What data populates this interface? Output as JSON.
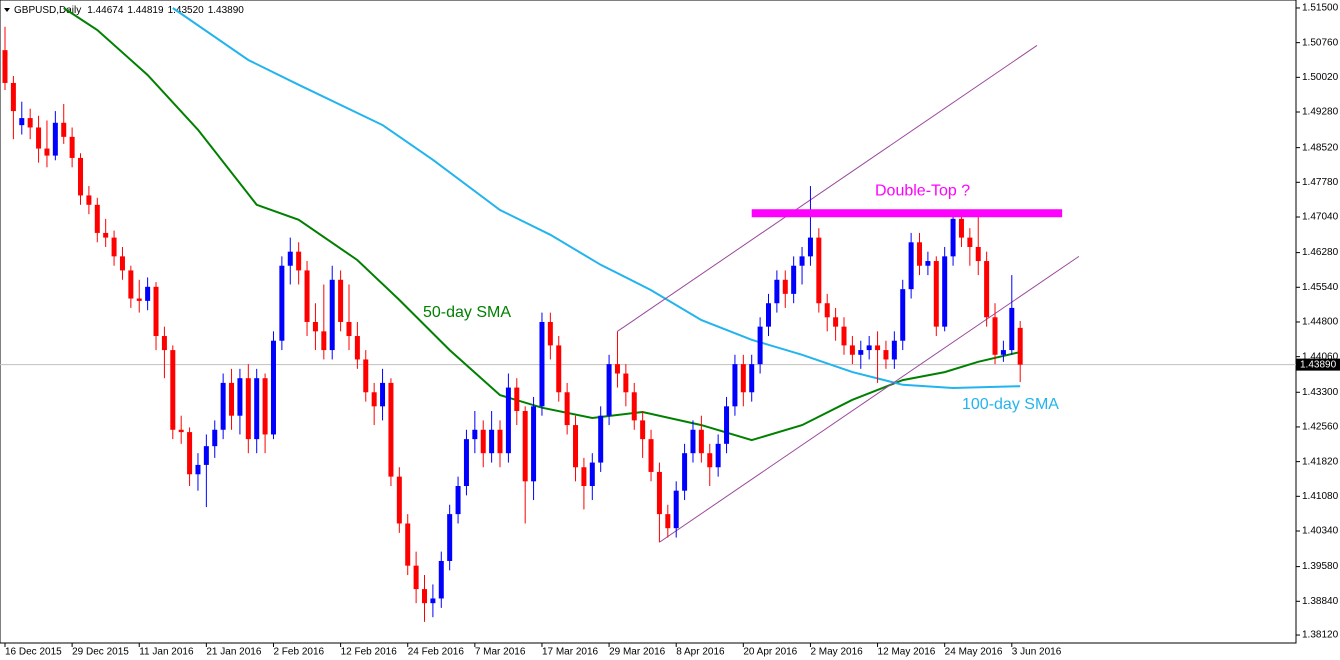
{
  "chart_data": {
    "type": "candlestick",
    "title": "GBPUSD,Daily",
    "last_quote_labels": [
      "1.44674",
      "1.44819",
      "1.43520",
      "1.43890"
    ],
    "up_color": "#0000ff",
    "down_color": "#ff0000",
    "categories": [
      "16 Dec 2015",
      null,
      null,
      null,
      null,
      null,
      null,
      null,
      "29 Dec 2015",
      null,
      null,
      null,
      null,
      null,
      null,
      null,
      "11 Jan 2016",
      null,
      null,
      null,
      null,
      null,
      null,
      null,
      "21 Jan 2016",
      null,
      null,
      null,
      null,
      null,
      null,
      null,
      "2 Feb 2016",
      null,
      null,
      null,
      null,
      null,
      null,
      null,
      "12 Feb 2016",
      null,
      null,
      null,
      null,
      null,
      null,
      null,
      "24 Feb 2016",
      null,
      null,
      null,
      null,
      null,
      null,
      null,
      "7 Mar 2016",
      null,
      null,
      null,
      null,
      null,
      null,
      null,
      "17 Mar 2016",
      null,
      null,
      null,
      null,
      null,
      null,
      null,
      "29 Mar 2016",
      null,
      null,
      null,
      null,
      null,
      null,
      null,
      "8 Apr 2016",
      null,
      null,
      null,
      null,
      null,
      null,
      null,
      "20 Apr 2016",
      null,
      null,
      null,
      null,
      null,
      null,
      null,
      "2 May 2016",
      null,
      null,
      null,
      null,
      null,
      null,
      null,
      "12 May 2016",
      null,
      null,
      null,
      null,
      null,
      null,
      null,
      "24 May 2016",
      null,
      null,
      null,
      null,
      null,
      null,
      null,
      "3 Jun 2016",
      null
    ],
    "candles": [
      [
        1.506,
        1.511,
        1.4975,
        1.499
      ],
      [
        1.499,
        1.5005,
        1.487,
        1.493
      ],
      [
        1.49,
        1.495,
        1.488,
        1.4915
      ],
      [
        1.4915,
        1.4935,
        1.487,
        1.4895
      ],
      [
        1.4895,
        1.492,
        1.482,
        1.485
      ],
      [
        1.485,
        1.491,
        1.481,
        1.4835
      ],
      [
        1.4835,
        1.493,
        1.4825,
        1.4905
      ],
      [
        1.4905,
        1.4945,
        1.486,
        1.4875
      ],
      [
        1.4875,
        1.4895,
        1.481,
        1.483
      ],
      [
        1.483,
        1.484,
        1.473,
        1.475
      ],
      [
        1.475,
        1.477,
        1.471,
        1.473
      ],
      [
        1.473,
        1.4745,
        1.465,
        1.467
      ],
      [
        1.467,
        1.47,
        1.464,
        1.466
      ],
      [
        1.466,
        1.4675,
        1.46,
        1.462
      ],
      [
        1.462,
        1.464,
        1.457,
        1.459
      ],
      [
        1.459,
        1.46,
        1.451,
        1.453
      ],
      [
        1.453,
        1.457,
        1.45,
        1.4525
      ],
      [
        1.4525,
        1.4575,
        1.4505,
        1.4555
      ],
      [
        1.4555,
        1.4565,
        1.442,
        1.445
      ],
      [
        1.445,
        1.447,
        1.436,
        1.442
      ],
      [
        1.442,
        1.443,
        1.423,
        1.425
      ],
      [
        1.425,
        1.428,
        1.422,
        1.4245
      ],
      [
        1.4245,
        1.4255,
        1.413,
        1.4155
      ],
      [
        1.4155,
        1.42,
        1.412,
        1.4175
      ],
      [
        1.4175,
        1.424,
        1.4085,
        1.4215
      ],
      [
        1.4215,
        1.427,
        1.419,
        1.425
      ],
      [
        1.425,
        1.437,
        1.423,
        1.435
      ],
      [
        1.435,
        1.438,
        1.425,
        1.428
      ],
      [
        1.428,
        1.438,
        1.424,
        1.436
      ],
      [
        1.436,
        1.439,
        1.42,
        1.423
      ],
      [
        1.423,
        1.438,
        1.42,
        1.436
      ],
      [
        1.436,
        1.437,
        1.42,
        1.424
      ],
      [
        1.424,
        1.446,
        1.423,
        1.444
      ],
      [
        1.444,
        1.462,
        1.442,
        1.46
      ],
      [
        1.46,
        1.466,
        1.456,
        1.463
      ],
      [
        1.463,
        1.465,
        1.456,
        1.459
      ],
      [
        1.459,
        1.461,
        1.445,
        1.448
      ],
      [
        1.448,
        1.452,
        1.442,
        1.446
      ],
      [
        1.446,
        1.456,
        1.44,
        1.442
      ],
      [
        1.442,
        1.46,
        1.44,
        1.457
      ],
      [
        1.457,
        1.459,
        1.446,
        1.448
      ],
      [
        1.448,
        1.456,
        1.442,
        1.445
      ],
      [
        1.445,
        1.448,
        1.438,
        1.44
      ],
      [
        1.44,
        1.442,
        1.431,
        1.433
      ],
      [
        1.433,
        1.435,
        1.426,
        1.43
      ],
      [
        1.43,
        1.438,
        1.427,
        1.435
      ],
      [
        1.435,
        1.436,
        1.413,
        1.415
      ],
      [
        1.415,
        1.417,
        1.403,
        1.405
      ],
      [
        1.405,
        1.407,
        1.394,
        1.396
      ],
      [
        1.396,
        1.399,
        1.388,
        1.391
      ],
      [
        1.391,
        1.394,
        1.384,
        1.388
      ],
      [
        1.388,
        1.392,
        1.385,
        1.389
      ],
      [
        1.389,
        1.399,
        1.387,
        1.397
      ],
      [
        1.397,
        1.409,
        1.395,
        1.407
      ],
      [
        1.407,
        1.415,
        1.405,
        1.413
      ],
      [
        1.413,
        1.425,
        1.411,
        1.423
      ],
      [
        1.423,
        1.429,
        1.42,
        1.425
      ],
      [
        1.425,
        1.427,
        1.417,
        1.42
      ],
      [
        1.42,
        1.429,
        1.418,
        1.425
      ],
      [
        1.425,
        1.427,
        1.417,
        1.42
      ],
      [
        1.42,
        1.437,
        1.418,
        1.434
      ],
      [
        1.434,
        1.436,
        1.426,
        1.429
      ],
      [
        1.429,
        1.43,
        1.405,
        1.414
      ],
      [
        1.414,
        1.432,
        1.41,
        1.43
      ],
      [
        1.43,
        1.45,
        1.428,
        1.448
      ],
      [
        1.448,
        1.45,
        1.44,
        1.443
      ],
      [
        1.443,
        1.445,
        1.431,
        1.433
      ],
      [
        1.433,
        1.435,
        1.424,
        1.426
      ],
      [
        1.426,
        1.428,
        1.414,
        1.417
      ],
      [
        1.417,
        1.419,
        1.408,
        1.413
      ],
      [
        1.413,
        1.42,
        1.41,
        1.418
      ],
      [
        1.418,
        1.43,
        1.416,
        1.428
      ],
      [
        1.428,
        1.441,
        1.426,
        1.439
      ],
      [
        1.439,
        1.446,
        1.434,
        1.437
      ],
      [
        1.437,
        1.439,
        1.43,
        1.433
      ],
      [
        1.433,
        1.435,
        1.425,
        1.427
      ],
      [
        1.427,
        1.429,
        1.419,
        1.423
      ],
      [
        1.423,
        1.425,
        1.414,
        1.416
      ],
      [
        1.416,
        1.418,
        1.401,
        1.407
      ],
      [
        1.407,
        1.409,
        1.402,
        1.404
      ],
      [
        1.404,
        1.414,
        1.402,
        1.412
      ],
      [
        1.412,
        1.422,
        1.41,
        1.42
      ],
      [
        1.42,
        1.427,
        1.418,
        1.425
      ],
      [
        1.425,
        1.428,
        1.418,
        1.42
      ],
      [
        1.42,
        1.422,
        1.413,
        1.417
      ],
      [
        1.417,
        1.424,
        1.415,
        1.422
      ],
      [
        1.422,
        1.432,
        1.42,
        1.43
      ],
      [
        1.43,
        1.441,
        1.428,
        1.439
      ],
      [
        1.439,
        1.441,
        1.43,
        1.433
      ],
      [
        1.433,
        1.441,
        1.431,
        1.439
      ],
      [
        1.439,
        1.449,
        1.437,
        1.447
      ],
      [
        1.447,
        1.454,
        1.445,
        1.452
      ],
      [
        1.452,
        1.459,
        1.45,
        1.457
      ],
      [
        1.457,
        1.459,
        1.451,
        1.454
      ],
      [
        1.454,
        1.462,
        1.452,
        1.46
      ],
      [
        1.46,
        1.464,
        1.456,
        1.462
      ],
      [
        1.462,
        1.477,
        1.46,
        1.466
      ],
      [
        1.466,
        1.468,
        1.45,
        1.452
      ],
      [
        1.452,
        1.454,
        1.446,
        1.449
      ],
      [
        1.449,
        1.451,
        1.444,
        1.447
      ],
      [
        1.447,
        1.449,
        1.441,
        1.443
      ],
      [
        1.443,
        1.445,
        1.439,
        1.441
      ],
      [
        1.441,
        1.444,
        1.438,
        1.442
      ],
      [
        1.442,
        1.445,
        1.44,
        1.443
      ],
      [
        1.443,
        1.446,
        1.435,
        1.442
      ],
      [
        1.442,
        1.444,
        1.438,
        1.44
      ],
      [
        1.44,
        1.446,
        1.438,
        1.444
      ],
      [
        1.444,
        1.457,
        1.442,
        1.455
      ],
      [
        1.455,
        1.467,
        1.453,
        1.465
      ],
      [
        1.465,
        1.467,
        1.458,
        1.46
      ],
      [
        1.46,
        1.463,
        1.458,
        1.461
      ],
      [
        1.461,
        1.462,
        1.445,
        1.447
      ],
      [
        1.447,
        1.464,
        1.446,
        1.462
      ],
      [
        1.462,
        1.472,
        1.46,
        1.47
      ],
      [
        1.47,
        1.471,
        1.464,
        1.466
      ],
      [
        1.466,
        1.468,
        1.46,
        1.464
      ],
      [
        1.464,
        1.472,
        1.458,
        1.461
      ],
      [
        1.461,
        1.463,
        1.447,
        1.449
      ],
      [
        1.449,
        1.452,
        1.439,
        1.441
      ],
      [
        1.441,
        1.444,
        1.4395,
        1.442
      ],
      [
        1.442,
        1.458,
        1.441,
        1.451
      ],
      [
        1.44674,
        1.44819,
        1.4352,
        1.4389
      ]
    ],
    "series": [
      {
        "name": "50-day SMA",
        "color": "#008000",
        "x": [
          7,
          11,
          17,
          23,
          30,
          35,
          42,
          47,
          53,
          59,
          64,
          70,
          76,
          83,
          89,
          95,
          101,
          107,
          112,
          116,
          121
        ],
        "values": [
          1.515,
          1.5103,
          1.5007,
          1.489,
          1.473,
          1.4698,
          1.4612,
          1.4527,
          1.442,
          1.4324,
          1.4297,
          1.4275,
          1.4288,
          1.426,
          1.4228,
          1.426,
          1.4314,
          1.4356,
          1.4373,
          1.4395,
          1.4416
        ]
      },
      {
        "name": "100-day SMA",
        "color": "#22b4ee",
        "x": [
          20,
          29,
          35,
          45,
          51,
          59,
          65,
          71,
          77,
          83,
          89,
          95,
          101,
          107,
          113,
          121
        ],
        "values": [
          1.515,
          1.5039,
          1.4986,
          1.49,
          1.4826,
          1.4719,
          1.4666,
          1.4602,
          1.4548,
          1.4484,
          1.4442,
          1.441,
          1.4373,
          1.4346,
          1.4339,
          1.4343
        ]
      }
    ],
    "channel": [
      {
        "x": [
          78,
          128
        ],
        "values": [
          1.401,
          1.462
        ]
      },
      {
        "x": [
          73,
          123
        ],
        "values": [
          1.446,
          1.507
        ]
      }
    ],
    "resistance": {
      "x": [
        89,
        126
      ],
      "value": 1.4712,
      "label": "Double-Top ?"
    },
    "ylim": [
      1.3795,
      1.5167
    ],
    "yticks": [
      {
        "value": 1.515,
        "label": "1.51500"
      },
      {
        "value": 1.5076,
        "label": "1.50760"
      },
      {
        "value": 1.5002,
        "label": "1.50020"
      },
      {
        "value": 1.4928,
        "label": "1.49280"
      },
      {
        "value": 1.4852,
        "label": "1.48520"
      },
      {
        "value": 1.4778,
        "label": "1.47780"
      },
      {
        "value": 1.4704,
        "label": "1.47040"
      },
      {
        "value": 1.4628,
        "label": "1.46280"
      },
      {
        "value": 1.4554,
        "label": "1.45540"
      },
      {
        "value": 1.448,
        "label": "1.44800"
      },
      {
        "value": 1.4406,
        "label": "1.44060"
      },
      {
        "value": 1.433,
        "label": "1.43300"
      },
      {
        "value": 1.4256,
        "label": "1.42560"
      },
      {
        "value": 1.4182,
        "label": "1.41820"
      },
      {
        "value": 1.4108,
        "label": "1.41080"
      },
      {
        "value": 1.4034,
        "label": "1.40340"
      },
      {
        "value": 1.3958,
        "label": "1.39580"
      },
      {
        "value": 1.3884,
        "label": "1.38840"
      },
      {
        "value": 1.3812,
        "label": "1.38120"
      }
    ]
  }
}
